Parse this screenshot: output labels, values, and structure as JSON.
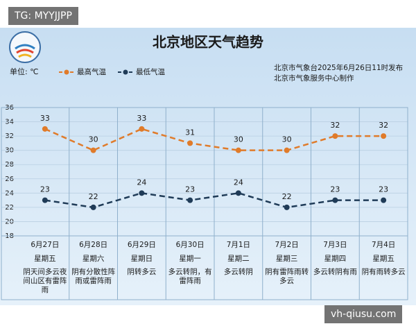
{
  "watermarks": [
    "TG: MYYJJPP",
    "vh-qiusu.com"
  ],
  "chart_data": {
    "type": "line",
    "title": "北京地区天气趋势",
    "unit_label": "单位: ℃",
    "notes": [
      "北京市气象台2025年6月26日11时发布",
      "北京市气象服务中心制作"
    ],
    "categories": [
      "6月27日",
      "6月28日",
      "6月29日",
      "6月30日",
      "7月1日",
      "7月2日",
      "7月3日",
      "7月4日"
    ],
    "weekdays": [
      "星期五",
      "星期六",
      "星期日",
      "星期一",
      "星期二",
      "星期三",
      "星期四",
      "星期五"
    ],
    "weather": [
      "阴天间多云夜间山区有雷阵雨",
      "阴有分散性阵雨或雷阵雨",
      "阴转多云",
      "多云转阴，有雷阵雨",
      "多云转阴",
      "阴有雷阵雨转多云",
      "多云转阴有雨",
      "阴有雨转多云"
    ],
    "series": [
      {
        "name": "最高气温",
        "color": "#e07b2a",
        "values": [
          33,
          30,
          33,
          31,
          30,
          30,
          32,
          32
        ]
      },
      {
        "name": "最低气温",
        "color": "#1f3b57",
        "values": [
          23,
          22,
          24,
          23,
          24,
          22,
          23,
          23
        ]
      }
    ],
    "ylim": [
      18,
      36
    ],
    "yticks": [
      18,
      20,
      22,
      24,
      26,
      28,
      30,
      32,
      34,
      36
    ],
    "grid": true,
    "dashed": true
  }
}
